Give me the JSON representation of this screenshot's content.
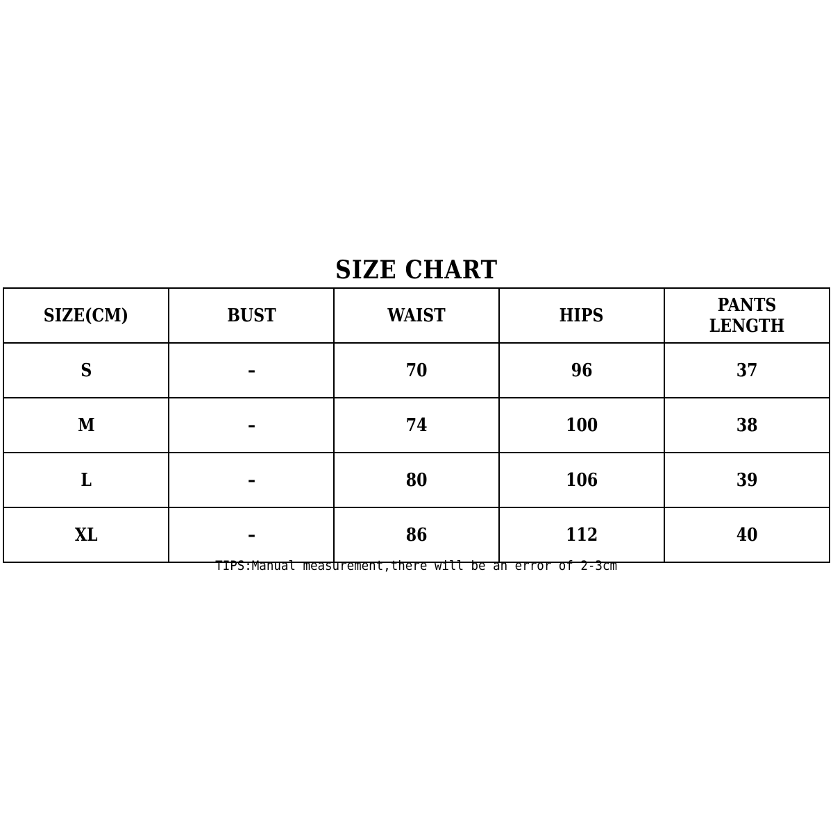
{
  "title": "SIZE CHART",
  "headers": [
    "SIZE(CM)",
    "BUST",
    "WAIST",
    "HIPS",
    "PANTS LENGTH"
  ],
  "rows": [
    [
      "S",
      "–",
      "70",
      "96",
      "37"
    ],
    [
      "M",
      "–",
      "74",
      "100",
      "38"
    ],
    [
      "L",
      "–",
      "80",
      "106",
      "39"
    ],
    [
      "XL",
      "–",
      "86",
      "112",
      "40"
    ]
  ],
  "tips": "TIPS:Manual measurement,there will be an error of 2-3cm"
}
